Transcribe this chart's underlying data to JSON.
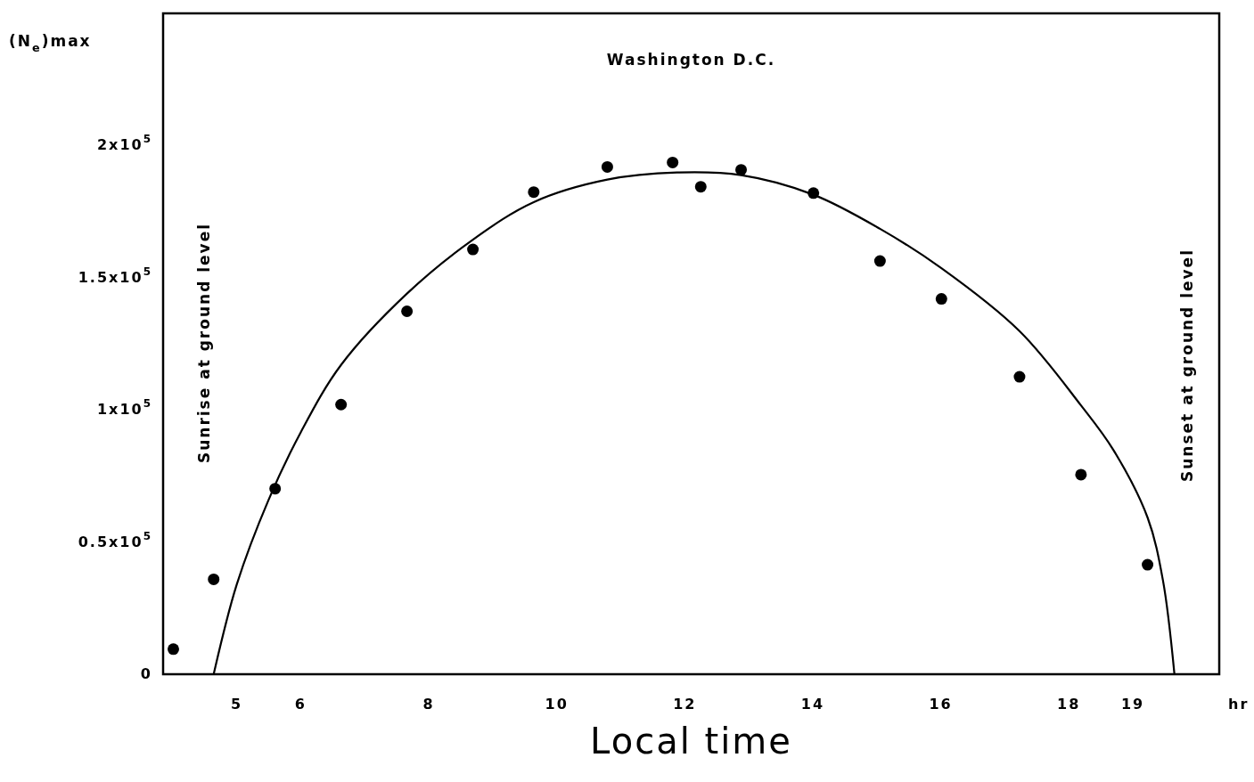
{
  "chart_data": {
    "type": "scatter",
    "title": "Washington D.C.",
    "xlabel": "Local time",
    "ylabel": "(N$_{e}$)max",
    "xlim": [
      3.85,
      20.35
    ],
    "ylim": [
      0,
      250000
    ],
    "xticks": [
      5,
      6,
      8,
      10,
      12,
      14,
      16,
      18,
      19
    ],
    "yticks": [
      0,
      {
        "value": 50000,
        "label": "0.5x10$^{5}$"
      },
      {
        "value": 100000,
        "label": "1x10$^{5}$"
      },
      {
        "value": 150000,
        "label": "1.5x10$^{5}$"
      },
      {
        "value": 200000,
        "label": "2x10$^{5}$"
      }
    ],
    "grid": false,
    "series": [
      {
        "color": "#000000",
        "marker": "circle",
        "x": [
          4.01,
          4.64,
          5.6,
          6.63,
          7.66,
          8.69,
          9.64,
          10.79,
          11.81,
          12.25,
          12.88,
          14.01,
          15.05,
          16.01,
          17.23,
          18.19,
          19.23
        ],
        "values": [
          9500,
          35900,
          70200,
          102000,
          137300,
          160700,
          182400,
          191900,
          193600,
          184400,
          190800,
          182000,
          156300,
          142000,
          112500,
          75500,
          41400
        ]
      },
      {
        "type": "line",
        "color": "#000000",
        "marker": "none",
        "line_style": "solid",
        "x": [
          4.64,
          5.0,
          5.5,
          6.0,
          6.63,
          7.66,
          8.69,
          9.64,
          10.79,
          11.88,
          12.88,
          14.01,
          15.05,
          16.01,
          17.23,
          18.19,
          18.7,
          19.23,
          19.47,
          19.65
        ],
        "values": [
          0,
          33900,
          66100,
          91500,
          117000,
          144000,
          164400,
          178600,
          187100,
          189800,
          188800,
          181400,
          168500,
          153600,
          129800,
          101700,
          84700,
          59300,
          35600,
          0
        ]
      }
    ],
    "annotations": [
      "hr",
      "Sunrise at ground level",
      "Sunset at ground level"
    ]
  }
}
